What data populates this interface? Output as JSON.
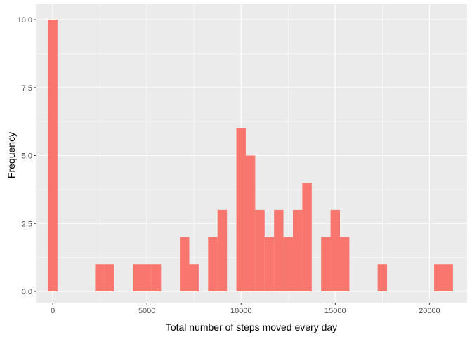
{
  "chart_data": {
    "type": "bar",
    "subtype": "histogram",
    "title": "",
    "xlabel": "Total number of steps moved every day",
    "ylabel": "Frequency",
    "xlim": [
      -900,
      22000
    ],
    "ylim": [
      0,
      10
    ],
    "x_ticks": [
      0,
      5000,
      10000,
      15000,
      20000
    ],
    "y_ticks": [
      0,
      2.5,
      5,
      7.5,
      10
    ],
    "x_tick_labels": [
      "0",
      "5000",
      "10000",
      "15000",
      "20000"
    ],
    "y_tick_labels": [
      "0.0",
      "2.5",
      "5.0",
      "7.5",
      "10.0"
    ],
    "grid": true,
    "bar_color": "#F8766D",
    "panel_color": "#EBEBEB",
    "grid_color": "#FFFFFF",
    "bin_width": 500,
    "bins": [
      {
        "x": 0,
        "count": 10
      },
      {
        "x": 2500,
        "count": 1
      },
      {
        "x": 3000,
        "count": 1
      },
      {
        "x": 4500,
        "count": 1
      },
      {
        "x": 5000,
        "count": 1
      },
      {
        "x": 5500,
        "count": 1
      },
      {
        "x": 7000,
        "count": 2
      },
      {
        "x": 7500,
        "count": 1
      },
      {
        "x": 8500,
        "count": 2
      },
      {
        "x": 9000,
        "count": 3
      },
      {
        "x": 10000,
        "count": 6
      },
      {
        "x": 10500,
        "count": 5
      },
      {
        "x": 11000,
        "count": 3
      },
      {
        "x": 11500,
        "count": 2
      },
      {
        "x": 12000,
        "count": 3
      },
      {
        "x": 12500,
        "count": 2
      },
      {
        "x": 13000,
        "count": 3
      },
      {
        "x": 13500,
        "count": 4
      },
      {
        "x": 14500,
        "count": 2
      },
      {
        "x": 15000,
        "count": 3
      },
      {
        "x": 15500,
        "count": 2
      },
      {
        "x": 17500,
        "count": 1
      },
      {
        "x": 20500,
        "count": 1
      },
      {
        "x": 21000,
        "count": 1
      }
    ]
  }
}
